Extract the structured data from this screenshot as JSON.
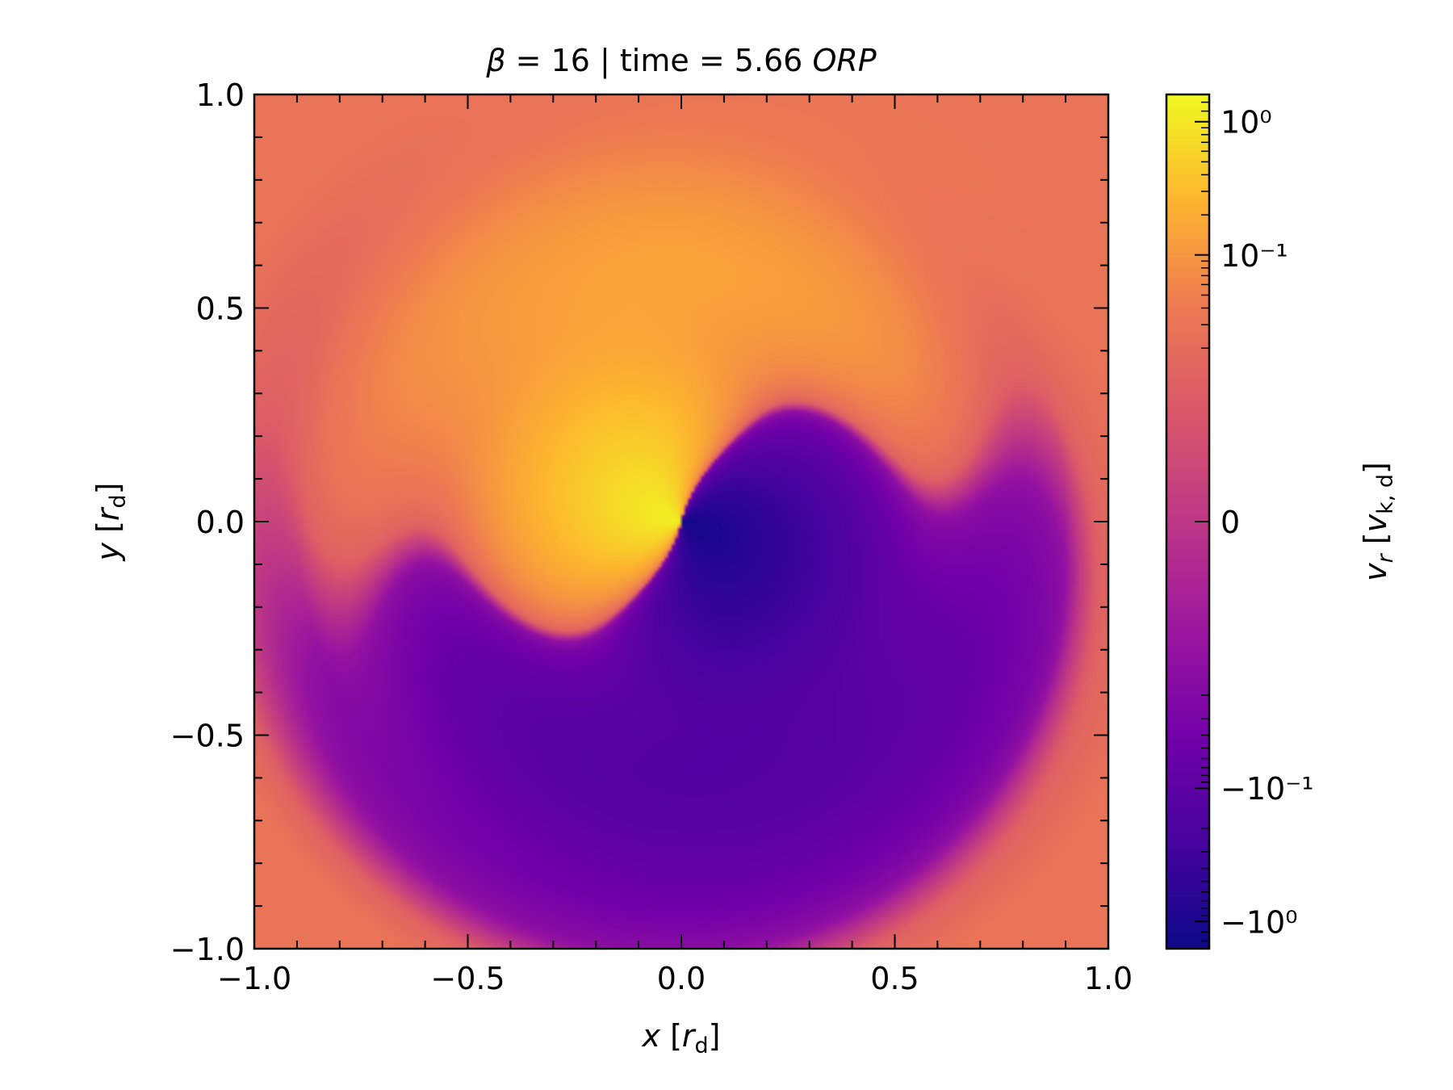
{
  "chart_data": [
    {
      "type": "heatmap",
      "title": "β = 16 | time = 5.66 ORP",
      "xlabel": "x [r_d]",
      "ylabel": "y [r_d]",
      "xlim": [
        -1.0,
        1.0
      ],
      "ylim": [
        -1.0,
        1.0
      ],
      "x_ticks": [
        "−1.0",
        "−0.5",
        "0.0",
        "0.5",
        "1.0"
      ],
      "y_ticks": [
        "−1.0",
        "−0.5",
        "0.0",
        "0.5",
        "1.0"
      ],
      "x_tick_values": [
        -1.0,
        -0.5,
        0.0,
        0.5,
        1.0
      ],
      "y_tick_values": [
        -1.0,
        -0.5,
        0.0,
        0.5,
        1.0
      ],
      "grid": false,
      "colormap": "plasma",
      "colorbar": {
        "label": "v_r [v_k,d]",
        "scale": "symlog",
        "range": [
          -1.6,
          1.6
        ],
        "linthresh": 0.01,
        "ticks": [
          "10⁰",
          "10⁻¹",
          "0",
          "−10⁻¹",
          "−10⁰"
        ],
        "tick_values": [
          1.0,
          0.1,
          0.0,
          -0.1,
          -1.0
        ]
      },
      "field_features": [
        {
          "region": "inner left (x≈-0.1, y≈-0.05)",
          "vr": 1.0
        },
        {
          "region": "inner right (x≈0.08, y≈-0.05)",
          "vr": -1.0
        },
        {
          "region": "outer left disk",
          "vr": 0.1
        },
        {
          "region": "outer right disk",
          "vr": -0.1
        },
        {
          "region": "edges",
          "vr": 0.03
        }
      ]
    }
  ],
  "title_parts": {
    "beta": "β",
    "eq1": " = 16 | time = 5.66 ",
    "unit": "ORP"
  },
  "xlabel_parts": {
    "var": "x",
    "open": " [",
    "sym": "r",
    "sub": "d",
    "close": "]"
  },
  "ylabel_parts": {
    "var": "y",
    "open": " [",
    "sym": "r",
    "sub": "d",
    "close": "]"
  },
  "cbar_label_parts": {
    "var": "v",
    "varsub": "r",
    "open": " [",
    "sym": "v",
    "sub": "k, d",
    "close": "]"
  },
  "colors": {
    "plasma_low": "#0d0887",
    "plasma_mid": "#cc4778",
    "plasma_high": "#f0f921"
  }
}
